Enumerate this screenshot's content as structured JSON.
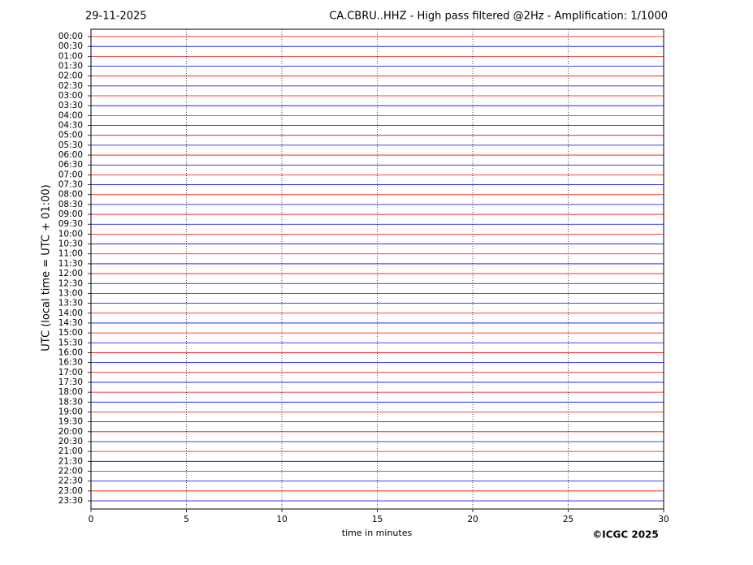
{
  "chart_data": {
    "type": "helicorder",
    "date": "29-11-2025",
    "title": "CA.CBRU..HHZ - High pass filtered @2Hz - Amplification: 1/1000",
    "y_label": "UTC (local time = UTC + 01:00)",
    "x_label": "time in minutes",
    "copyright": "©ICGC 2025",
    "categories": [
      "00:00",
      "00:30",
      "01:00",
      "01:30",
      "02:00",
      "02:30",
      "03:00",
      "03:30",
      "04:00",
      "04:30",
      "05:00",
      "05:30",
      "06:00",
      "06:30",
      "07:00",
      "07:30",
      "08:00",
      "08:30",
      "09:00",
      "09:30",
      "10:00",
      "10:30",
      "11:00",
      "11:30",
      "12:00",
      "12:30",
      "13:00",
      "13:30",
      "14:00",
      "14:30",
      "15:00",
      "15:30",
      "16:00",
      "16:30",
      "17:00",
      "17:30",
      "18:00",
      "18:30",
      "19:00",
      "19:30",
      "20:00",
      "20:30",
      "21:00",
      "21:30",
      "22:00",
      "22:30",
      "23:00",
      "23:30"
    ],
    "colors": [
      "#ff0000",
      "#0000ff"
    ],
    "xlim": [
      0,
      30
    ],
    "xticks": [
      0,
      5,
      10,
      15,
      20,
      25,
      30
    ],
    "grid": true
  }
}
